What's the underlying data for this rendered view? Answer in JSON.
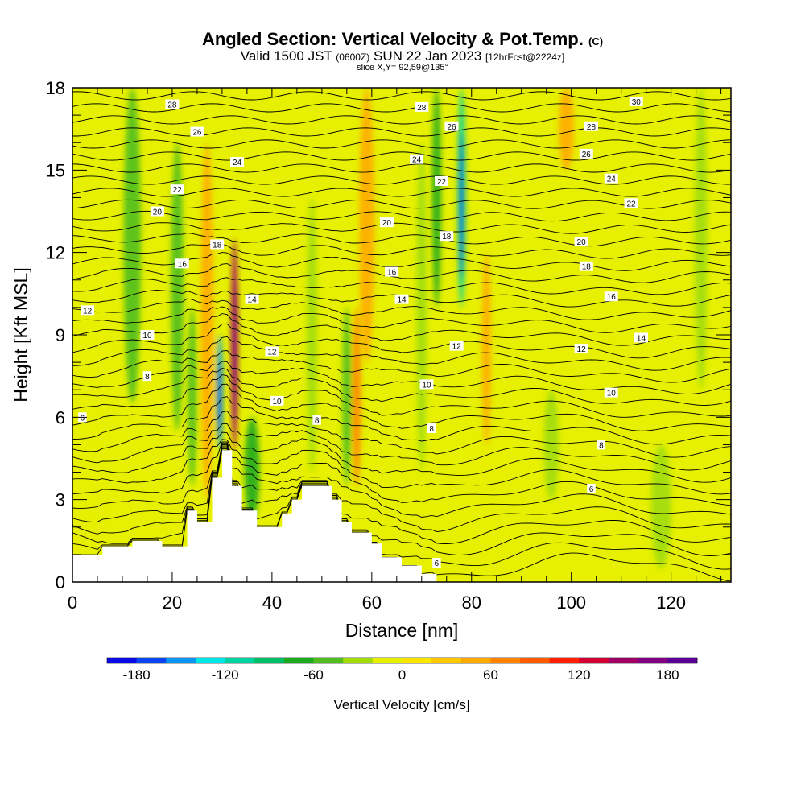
{
  "title": {
    "main": "Angled Section: Vertical Velocity & Pot.Temp.",
    "main_units": "(C)",
    "valid_prefix": "Valid 1500 JST",
    "valid_z": "(0600Z)",
    "valid_date": "SUN 22 Jan 2023",
    "forecast": "[12hrFcst@2224z]",
    "slice": "slice X,Y= 92,59@135°"
  },
  "colors": {
    "plot_background": "#e6f000",
    "terrain": "#ffffff",
    "contour": "#000000"
  },
  "chart_data": {
    "type": "heatmap",
    "xlabel": "Distance [nm]",
    "ylabel": "Height [Kft MSL]",
    "xlim": [
      0,
      132
    ],
    "ylim": [
      0,
      18
    ],
    "x_ticks": [
      0,
      20,
      40,
      60,
      80,
      100,
      120
    ],
    "y_ticks": [
      0,
      3,
      6,
      9,
      12,
      15,
      18
    ],
    "colorbar": {
      "label": "Vertical Velocity [cm/s]",
      "ticks": [
        -180,
        -120,
        -60,
        0,
        60,
        120,
        180
      ],
      "range": [
        -200,
        200
      ],
      "step": 20,
      "colors": [
        "#0a0ae6",
        "#0a46f0",
        "#0a96f0",
        "#00e6e6",
        "#00d2a0",
        "#00be64",
        "#1eaa1e",
        "#50be1e",
        "#a0dc0a",
        "#e6f000",
        "#ffe600",
        "#ffc800",
        "#ffaa00",
        "#ff8200",
        "#ff5a00",
        "#ff1e00",
        "#d20032",
        "#a00064",
        "#820082",
        "#5a0096"
      ]
    },
    "velocity_features": [
      {
        "x": 12,
        "y0": 6.5,
        "y1": 18,
        "w": 3.5,
        "v": -55
      },
      {
        "x": 21,
        "y0": 5.5,
        "y1": 16,
        "w": 2.5,
        "v": -45
      },
      {
        "x": 24,
        "y0": 3.5,
        "y1": 10,
        "w": 1.8,
        "v": -60
      },
      {
        "x": 27,
        "y0": 3.0,
        "y1": 16,
        "w": 2.5,
        "v": 45
      },
      {
        "x": 29.5,
        "y0": 4.8,
        "y1": 9,
        "w": 1.3,
        "v": -150
      },
      {
        "x": 32.5,
        "y0": 4.8,
        "y1": 12.5,
        "w": 1.4,
        "v": 150
      },
      {
        "x": 36,
        "y0": 2.2,
        "y1": 6,
        "w": 3,
        "v": -70
      },
      {
        "x": 48,
        "y0": 4,
        "y1": 14,
        "w": 2,
        "v": -30
      },
      {
        "x": 55,
        "y0": 3.5,
        "y1": 10,
        "w": 1.8,
        "v": -50
      },
      {
        "x": 57,
        "y0": 3.5,
        "y1": 10,
        "w": 1.6,
        "v": 65
      },
      {
        "x": 59,
        "y0": 8,
        "y1": 18,
        "w": 3,
        "v": 50
      },
      {
        "x": 70,
        "y0": 4,
        "y1": 16,
        "w": 2,
        "v": -35
      },
      {
        "x": 73,
        "y0": 10,
        "y1": 18,
        "w": 1.8,
        "v": -65
      },
      {
        "x": 78,
        "y0": 10,
        "y1": 18,
        "w": 1.6,
        "v": -120
      },
      {
        "x": 83,
        "y0": 5,
        "y1": 12,
        "w": 1.8,
        "v": 40
      },
      {
        "x": 96,
        "y0": 3,
        "y1": 7,
        "w": 3,
        "v": -30
      },
      {
        "x": 99,
        "y0": 15,
        "y1": 18,
        "w": 3,
        "v": 50
      },
      {
        "x": 118,
        "y0": 0.5,
        "y1": 5,
        "w": 4,
        "v": -25
      },
      {
        "x": 126,
        "y0": 7,
        "y1": 18,
        "w": 2.5,
        "v": -40
      },
      {
        "x": 6,
        "y0": 0.8,
        "y1": 7,
        "w": 2.5,
        "v": -20
      }
    ],
    "terrain_profile": [
      [
        0,
        1
      ],
      [
        6,
        1
      ],
      [
        6,
        1.3
      ],
      [
        12,
        1.3
      ],
      [
        12,
        1.5
      ],
      [
        18,
        1.5
      ],
      [
        18,
        1.3
      ],
      [
        23,
        1.3
      ],
      [
        23,
        2.6
      ],
      [
        25,
        2.6
      ],
      [
        25,
        2.2
      ],
      [
        28,
        2.2
      ],
      [
        28,
        3.8
      ],
      [
        30,
        3.8
      ],
      [
        30,
        4.8
      ],
      [
        32,
        4.8
      ],
      [
        32,
        3.5
      ],
      [
        34,
        3.5
      ],
      [
        34,
        2.6
      ],
      [
        37,
        2.6
      ],
      [
        37,
        2.0
      ],
      [
        42,
        2.0
      ],
      [
        42,
        2.5
      ],
      [
        44,
        2.5
      ],
      [
        44,
        3.0
      ],
      [
        46,
        3.0
      ],
      [
        46,
        3.5
      ],
      [
        52,
        3.5
      ],
      [
        52,
        3.0
      ],
      [
        54,
        3.0
      ],
      [
        54,
        2.2
      ],
      [
        56,
        2.2
      ],
      [
        56,
        1.8
      ],
      [
        60,
        1.8
      ],
      [
        60,
        1.4
      ],
      [
        62,
        1.4
      ],
      [
        62,
        0.9
      ],
      [
        66,
        0.9
      ],
      [
        66,
        0.6
      ],
      [
        70,
        0.6
      ],
      [
        70,
        0.3
      ],
      [
        73,
        0.3
      ],
      [
        73,
        0
      ],
      [
        132,
        0
      ]
    ],
    "contour_labels": [
      {
        "text": "28",
        "x": 20,
        "y": 17.4
      },
      {
        "text": "26",
        "x": 25,
        "y": 16.4
      },
      {
        "text": "24",
        "x": 33,
        "y": 15.3
      },
      {
        "text": "22",
        "x": 21,
        "y": 14.3
      },
      {
        "text": "20",
        "x": 17,
        "y": 13.5
      },
      {
        "text": "18",
        "x": 29,
        "y": 12.3
      },
      {
        "text": "16",
        "x": 22,
        "y": 11.6
      },
      {
        "text": "14",
        "x": 36,
        "y": 10.3
      },
      {
        "text": "12",
        "x": 3,
        "y": 9.9
      },
      {
        "text": "10",
        "x": 15,
        "y": 9.0
      },
      {
        "text": "8",
        "x": 15,
        "y": 7.5
      },
      {
        "text": "6",
        "x": 2,
        "y": 6.0
      },
      {
        "text": "12",
        "x": 40,
        "y": 8.4
      },
      {
        "text": "10",
        "x": 41,
        "y": 6.6
      },
      {
        "text": "8",
        "x": 49,
        "y": 5.9
      },
      {
        "text": "28",
        "x": 70,
        "y": 17.3
      },
      {
        "text": "26",
        "x": 76,
        "y": 16.6
      },
      {
        "text": "24",
        "x": 69,
        "y": 15.4
      },
      {
        "text": "22",
        "x": 74,
        "y": 14.6
      },
      {
        "text": "20",
        "x": 63,
        "y": 13.1
      },
      {
        "text": "18",
        "x": 75,
        "y": 12.6
      },
      {
        "text": "16",
        "x": 64,
        "y": 11.3
      },
      {
        "text": "14",
        "x": 66,
        "y": 10.3
      },
      {
        "text": "12",
        "x": 77,
        "y": 8.6
      },
      {
        "text": "10",
        "x": 71,
        "y": 7.2
      },
      {
        "text": "8",
        "x": 72,
        "y": 5.6
      },
      {
        "text": "30",
        "x": 113,
        "y": 17.5
      },
      {
        "text": "28",
        "x": 104,
        "y": 16.6
      },
      {
        "text": "26",
        "x": 103,
        "y": 15.6
      },
      {
        "text": "24",
        "x": 108,
        "y": 14.7
      },
      {
        "text": "22",
        "x": 112,
        "y": 13.8
      },
      {
        "text": "20",
        "x": 102,
        "y": 12.4
      },
      {
        "text": "18",
        "x": 103,
        "y": 11.5
      },
      {
        "text": "16",
        "x": 108,
        "y": 10.4
      },
      {
        "text": "14",
        "x": 114,
        "y": 8.9
      },
      {
        "text": "12",
        "x": 102,
        "y": 8.5
      },
      {
        "text": "10",
        "x": 108,
        "y": 6.9
      },
      {
        "text": "8",
        "x": 106,
        "y": 5.0
      },
      {
        "text": "6",
        "x": 104,
        "y": 3.4
      },
      {
        "text": "6",
        "x": 73,
        "y": 0.7
      }
    ]
  }
}
